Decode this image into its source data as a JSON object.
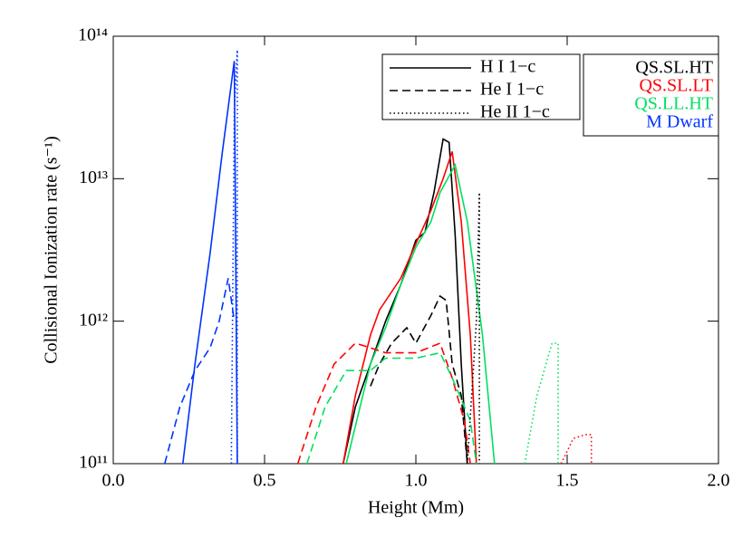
{
  "chart_data": {
    "type": "line",
    "xlabel": "Height (Mm)",
    "ylabel": "Collisional Ionization rate (s⁻¹)",
    "log_y": true,
    "xlim": [
      0,
      2
    ],
    "ylim": [
      100000000000.0,
      100000000000000.0
    ],
    "xticks": [
      {
        "value": 0,
        "label": "0.0"
      },
      0.5,
      {
        "value": 1,
        "label": "1.0"
      },
      1.5,
      {
        "value": 2,
        "label": "2.0"
      }
    ],
    "yticks": [
      {
        "value": 100000000000.0,
        "label": "10¹¹"
      },
      {
        "value": 1000000000000.0,
        "label": "10¹²"
      },
      {
        "value": 10000000000000.0,
        "label": "10¹³"
      },
      {
        "value": 100000000000000.0,
        "label": "10¹⁴"
      }
    ],
    "line_styles": [
      {
        "name": "H I 1−c",
        "dash": "solid"
      },
      {
        "name": "He I 1−c",
        "dash": "dashed"
      },
      {
        "name": "He II 1−c",
        "dash": "dotted"
      }
    ],
    "models": [
      {
        "name": "QS.SL.HT",
        "color": "#000000"
      },
      {
        "name": "QS.SL.LT",
        "color": "#ff0000"
      },
      {
        "name": "QS.LL.HT",
        "color": "#00e060"
      },
      {
        "name": "M Dwarf",
        "color": "#0033ff"
      }
    ],
    "series": [
      {
        "model": 0,
        "style": 0,
        "x": [
          0.76,
          0.8,
          0.85,
          0.9,
          0.95,
          1.0,
          1.03,
          1.06,
          1.09,
          1.11,
          1.13,
          1.15,
          1.17
        ],
        "values": [
          100000000000.0,
          250000000000.0,
          500000000000.0,
          1000000000000.0,
          1800000000000.0,
          3700000000000.0,
          4200000000000.0,
          8000000000000.0,
          19000000000000.0,
          18000000000000.0,
          4000000000000.0,
          500000000000.0,
          100000000000.0
        ]
      },
      {
        "model": 1,
        "style": 0,
        "x": [
          0.76,
          0.8,
          0.85,
          0.88,
          0.95,
          1.0,
          1.05,
          1.09,
          1.12,
          1.15,
          1.18,
          1.2
        ],
        "values": [
          100000000000.0,
          300000000000.0,
          800000000000.0,
          1200000000000.0,
          2000000000000.0,
          3500000000000.0,
          6000000000000.0,
          10000000000000.0,
          15500000000000.0,
          5000000000000.0,
          800000000000.0,
          100000000000.0
        ]
      },
      {
        "model": 2,
        "style": 0,
        "x": [
          0.77,
          0.85,
          0.9,
          0.95,
          1.0,
          1.05,
          1.08,
          1.13,
          1.17,
          1.22,
          1.26
        ],
        "values": [
          100000000000.0,
          500000000000.0,
          900000000000.0,
          1800000000000.0,
          3300000000000.0,
          5000000000000.0,
          8000000000000.0,
          12500000000000.0,
          5000000000000.0,
          800000000000.0,
          100000000000.0
        ]
      },
      {
        "model": 3,
        "style": 0,
        "x": [
          0.23,
          0.27,
          0.32,
          0.36,
          0.4,
          0.41
        ],
        "values": [
          100000000000.0,
          500000000000.0,
          3000000000000.0,
          15000000000000.0,
          67000000000000.0,
          100000000000.0
        ]
      },
      {
        "model": 0,
        "style": 1,
        "x": [
          0.85,
          0.88,
          0.92,
          0.97,
          1.0,
          1.05,
          1.08,
          1.1,
          1.12,
          1.15,
          1.17
        ],
        "values": [
          350000000000.0,
          500000000000.0,
          700000000000.0,
          900000000000.0,
          700000000000.0,
          1100000000000.0,
          1500000000000.0,
          1400000000000.0,
          500000000000.0,
          300000000000.0,
          100000000000.0
        ]
      },
      {
        "model": 1,
        "style": 1,
        "x": [
          0.61,
          0.67,
          0.73,
          0.8,
          0.85,
          0.9,
          1.0,
          1.08,
          1.12,
          1.16,
          1.18
        ],
        "values": [
          100000000000.0,
          250000000000.0,
          500000000000.0,
          700000000000.0,
          650000000000.0,
          600000000000.0,
          600000000000.0,
          700000000000.0,
          400000000000.0,
          200000000000.0,
          100000000000.0
        ]
      },
      {
        "model": 2,
        "style": 1,
        "x": [
          0.64,
          0.7,
          0.77,
          0.85,
          0.9,
          1.0,
          1.08,
          1.12,
          1.18,
          1.2
        ],
        "values": [
          100000000000.0,
          250000000000.0,
          450000000000.0,
          450000000000.0,
          550000000000.0,
          550000000000.0,
          600000000000.0,
          400000000000.0,
          200000000000.0,
          100000000000.0
        ]
      },
      {
        "model": 3,
        "style": 1,
        "x": [
          0.17,
          0.22,
          0.27,
          0.32,
          0.35,
          0.38,
          0.4
        ],
        "values": [
          100000000000.0,
          250000000000.0,
          450000000000.0,
          650000000000.0,
          1000000000000.0,
          2000000000000.0,
          1000000000000.0
        ]
      },
      {
        "model": 0,
        "style": 2,
        "x": [
          1.17,
          1.2,
          1.21,
          1.21
        ],
        "values": [
          100000000000.0,
          1000000000000.0,
          8000000000000.0,
          100000000000.0
        ]
      },
      {
        "model": 1,
        "style": 2,
        "x": [
          1.48,
          1.52,
          1.56,
          1.58,
          1.58
        ],
        "values": [
          100000000000.0,
          150000000000.0,
          160000000000.0,
          160000000000.0,
          100000000000.0
        ]
      },
      {
        "model": 2,
        "style": 2,
        "x": [
          1.36,
          1.4,
          1.45,
          1.47,
          1.47
        ],
        "values": [
          100000000000.0,
          300000000000.0,
          700000000000.0,
          700000000000.0,
          100000000000.0
        ]
      },
      {
        "model": 3,
        "style": 2,
        "x": [
          0.39,
          0.4,
          0.41,
          0.41
        ],
        "values": [
          100000000000.0,
          30000000000000.0,
          80000000000000.0,
          100000000000.0
        ]
      }
    ]
  }
}
